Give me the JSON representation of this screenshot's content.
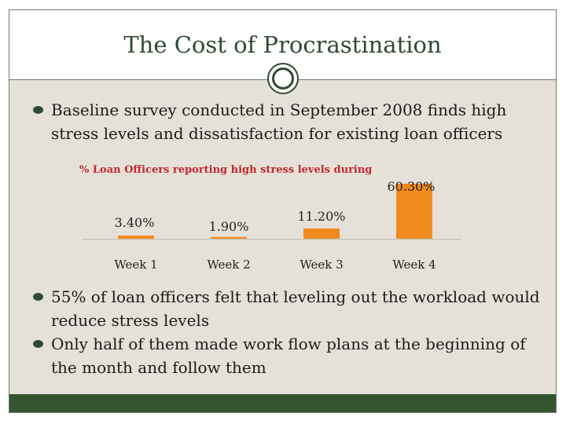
{
  "slide": {
    "title": "The Cost of Procrastination"
  },
  "bullets_top": [
    "Baseline survey conducted in September 2008 finds high stress levels and dissatisfaction for existing loan officers"
  ],
  "bullets_bottom": [
    "55% of loan officers felt that leveling out the workload would reduce stress levels",
    "Only half of them made work flow plans at the beginning of the month and follow them"
  ],
  "chart_data": {
    "type": "bar",
    "title": "% Loan Officers reporting high stress levels during",
    "categories": [
      "Week 1",
      "Week 2",
      "Week 3",
      "Week 4"
    ],
    "values": [
      3.4,
      1.9,
      11.2,
      60.3
    ],
    "value_labels": [
      "3.40%",
      "1.90%",
      "11.20%",
      "60.30%"
    ],
    "ylim": [
      0,
      60.3
    ],
    "bar_color": "#f08a1c",
    "title_color": "#c0292e",
    "grid": false,
    "legend": "none"
  },
  "colors": {
    "accent": "#2f4a33",
    "background": "#e5e1d8",
    "footer": "#34552e"
  },
  "icons": {
    "divider": "double-ring-icon",
    "bullet": "bullet-dot-icon"
  }
}
